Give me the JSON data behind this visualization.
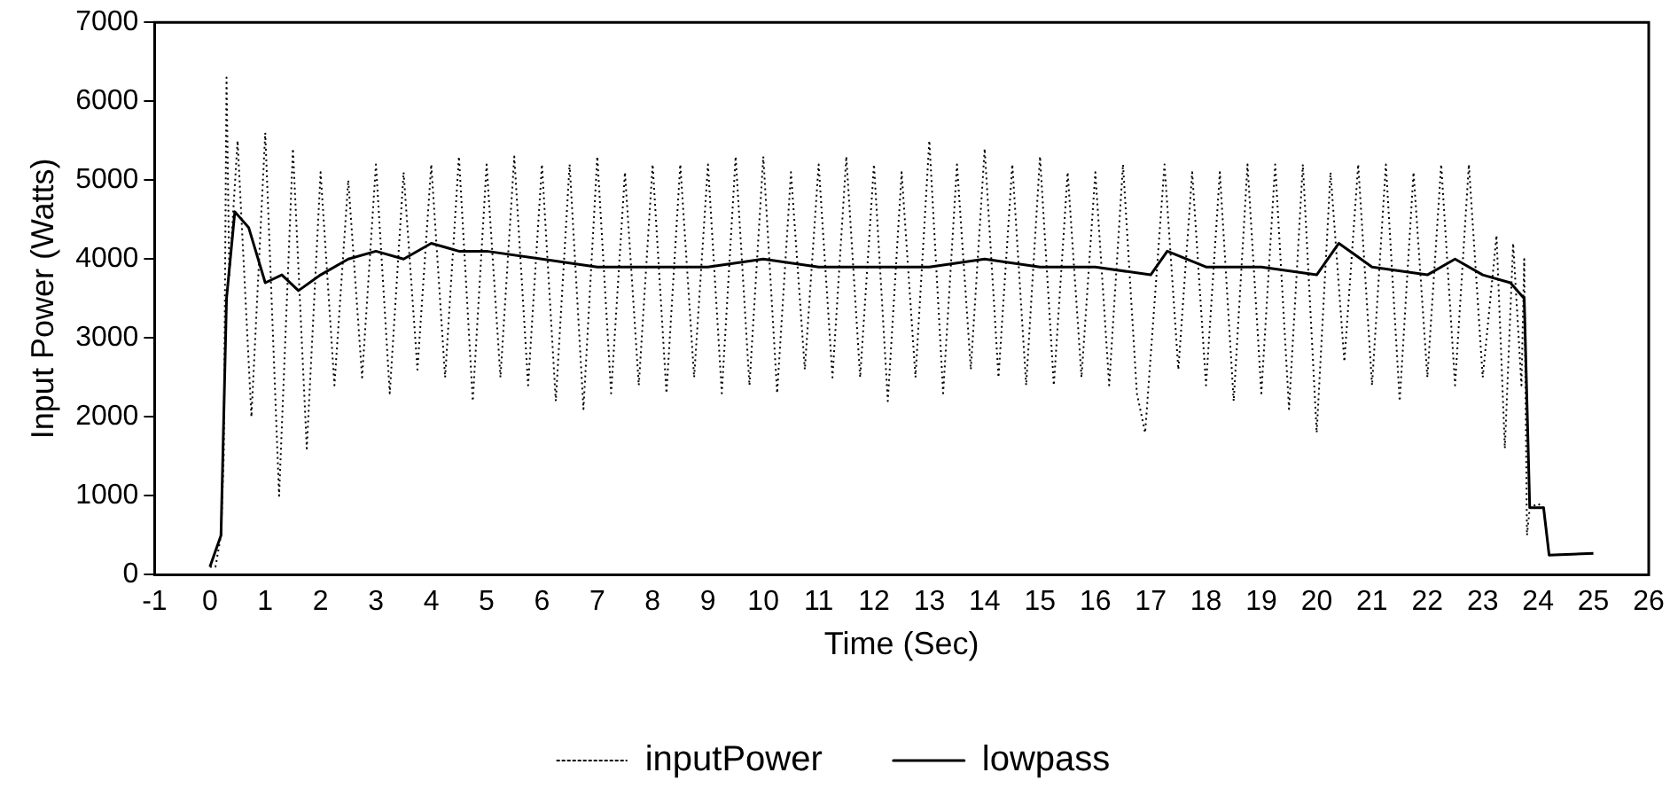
{
  "chart_data": {
    "type": "line",
    "xlabel": "Time (Sec)",
    "ylabel": "Input Power (Watts)",
    "xlim": [
      -1,
      26
    ],
    "xticks": [
      -1,
      0,
      1,
      2,
      3,
      4,
      5,
      6,
      7,
      8,
      9,
      10,
      11,
      12,
      13,
      14,
      15,
      16,
      17,
      18,
      19,
      20,
      21,
      22,
      23,
      24,
      25,
      26
    ],
    "ylim": [
      0,
      7000
    ],
    "yticks": [
      0,
      1000,
      2000,
      3000,
      4000,
      5000,
      6000,
      7000
    ],
    "grid": false,
    "legend": "bottom",
    "marker": "none",
    "series": [
      {
        "name": "inputPower",
        "color": "#000000",
        "line_style": "dotted",
        "x": [
          0,
          0.1,
          0.2,
          0.25,
          0.3,
          0.35,
          0.5,
          0.75,
          1.0,
          1.25,
          1.5,
          1.75,
          2.0,
          2.25,
          2.5,
          2.75,
          3.0,
          3.25,
          3.5,
          3.75,
          4.0,
          4.25,
          4.5,
          4.75,
          5.0,
          5.25,
          5.5,
          5.75,
          6.0,
          6.25,
          6.5,
          6.75,
          7.0,
          7.25,
          7.5,
          7.75,
          8.0,
          8.25,
          8.5,
          8.75,
          9.0,
          9.25,
          9.5,
          9.75,
          10.0,
          10.25,
          10.5,
          10.75,
          11.0,
          11.25,
          11.5,
          11.75,
          12.0,
          12.25,
          12.5,
          12.75,
          13.0,
          13.25,
          13.5,
          13.75,
          14.0,
          14.25,
          14.5,
          14.75,
          15.0,
          15.25,
          15.5,
          15.75,
          16.0,
          16.25,
          16.5,
          16.75,
          16.9,
          17.25,
          17.5,
          17.75,
          18.0,
          18.25,
          18.5,
          18.75,
          19.0,
          19.25,
          19.5,
          19.75,
          20.0,
          20.25,
          20.5,
          20.75,
          21.0,
          21.25,
          21.5,
          21.75,
          22.0,
          22.25,
          22.5,
          22.75,
          23.0,
          23.25,
          23.4,
          23.55,
          23.7,
          23.75,
          23.8,
          23.85,
          24.0,
          24.1,
          24.2,
          25.0
        ],
        "values": [
          100,
          100,
          500,
          1500,
          6300,
          3800,
          5500,
          2000,
          5600,
          1000,
          5400,
          1600,
          5100,
          2400,
          5000,
          2500,
          5200,
          2300,
          5100,
          2600,
          5200,
          2500,
          5300,
          2200,
          5200,
          2500,
          5300,
          2400,
          5200,
          2200,
          5200,
          2100,
          5300,
          2300,
          5100,
          2400,
          5200,
          2300,
          5200,
          2500,
          5200,
          2300,
          5300,
          2400,
          5300,
          2300,
          5100,
          2600,
          5200,
          2500,
          5300,
          2500,
          5200,
          2200,
          5100,
          2500,
          5500,
          2300,
          5200,
          2600,
          5400,
          2500,
          5200,
          2400,
          5300,
          2400,
          5100,
          2500,
          5100,
          2400,
          5200,
          2300,
          1800,
          5200,
          2600,
          5100,
          2400,
          5100,
          2200,
          5200,
          2300,
          5200,
          2100,
          5200,
          1800,
          5100,
          2700,
          5200,
          2400,
          5200,
          2200,
          5100,
          2500,
          5200,
          2400,
          5200,
          2500,
          4300,
          1600,
          4200,
          2400,
          4000,
          500,
          850,
          900,
          850,
          250,
          270
        ]
      },
      {
        "name": "lowpass",
        "color": "#000000",
        "line_style": "solid",
        "x": [
          0,
          0.2,
          0.3,
          0.45,
          0.7,
          1.0,
          1.3,
          1.6,
          2.0,
          2.5,
          3.0,
          3.5,
          4.0,
          4.5,
          5.0,
          6.0,
          7.0,
          8.0,
          9.0,
          10.0,
          11.0,
          12.0,
          13.0,
          14.0,
          15.0,
          16.0,
          17.0,
          17.3,
          18.0,
          19.0,
          20.0,
          20.4,
          21.0,
          22.0,
          22.5,
          23.0,
          23.5,
          23.75,
          23.85,
          24.1,
          24.2,
          25.0
        ],
        "values": [
          100,
          500,
          3500,
          4600,
          4400,
          3700,
          3800,
          3600,
          3800,
          4000,
          4100,
          4000,
          4200,
          4100,
          4100,
          4000,
          3900,
          3900,
          3900,
          4000,
          3900,
          3900,
          3900,
          4000,
          3900,
          3900,
          3800,
          4100,
          3900,
          3900,
          3800,
          4200,
          3900,
          3800,
          4000,
          3800,
          3700,
          3500,
          850,
          850,
          250,
          270
        ]
      }
    ]
  }
}
